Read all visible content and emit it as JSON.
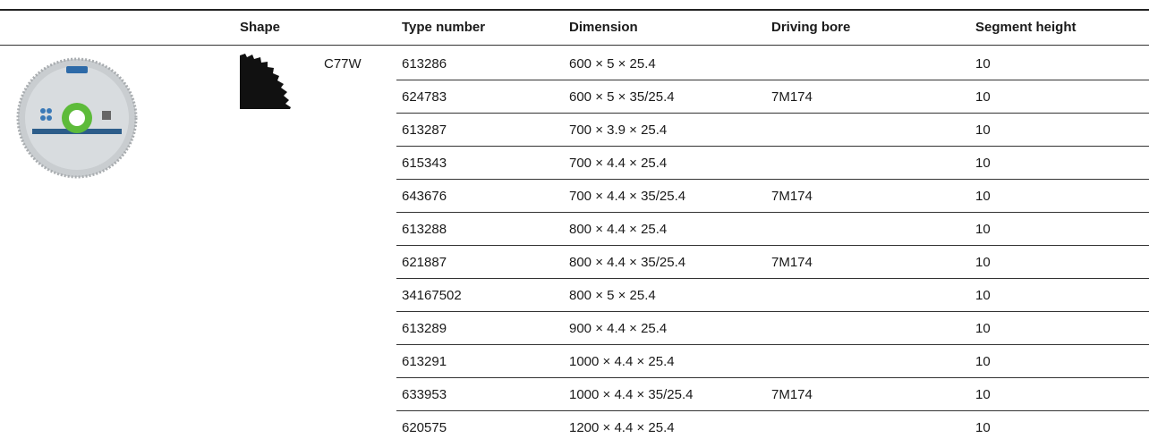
{
  "table": {
    "header": [
      "Shape",
      "Type number",
      "Dimension",
      "Driving bore",
      "Segment height"
    ],
    "variant": "C77W",
    "rows": [
      [
        "613286",
        "600 × 5 × 25.4",
        null,
        "10"
      ],
      [
        "624783",
        "600 × 5 × 35/25.4",
        "7M174",
        "10"
      ],
      [
        "613287",
        "700 × 3.9 × 25.4",
        null,
        "10"
      ],
      [
        "615343",
        "700 × 4.4 × 25.4",
        null,
        "10"
      ],
      [
        "643676",
        "700 × 4.4 × 35/25.4",
        "7M174",
        "10"
      ],
      [
        "613288",
        "800 × 4.4 × 25.4",
        null,
        "10"
      ],
      [
        "621887",
        "800 × 4.4 × 35/25.4",
        "7M174",
        "10"
      ],
      [
        "34167502",
        "800 × 5 × 25.4",
        null,
        "10"
      ],
      [
        "613289",
        "900 × 4.4 × 25.4",
        null,
        "10"
      ],
      [
        "613291",
        "1000 × 4.4 × 25.4",
        null,
        "10"
      ],
      [
        "633953",
        "1000 × 4.4 × 35/25.4",
        "7M174",
        "10"
      ],
      [
        "620575",
        "1200 × 4.4 × 25.4",
        null,
        "10"
      ]
    ]
  }
}
